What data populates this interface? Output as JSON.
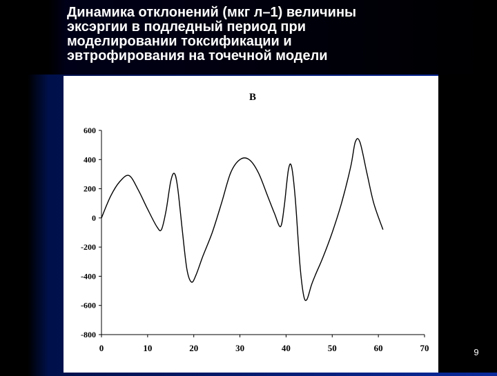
{
  "slide": {
    "title": "Динамика отклонений (мкг л–1) величины\nэксэргии в подледный период при\nмоделировании токсификации и\nэвтрофирования на точечной модели",
    "page_number": "9"
  },
  "chart_data": {
    "type": "line",
    "panel_label": "В",
    "xlim": [
      0,
      70
    ],
    "ylim": [
      -800,
      600
    ],
    "x_ticks": [
      "0",
      "10",
      "20",
      "30",
      "40",
      "50",
      "60",
      "70"
    ],
    "y_ticks": [
      "600",
      "400",
      "200",
      "0",
      "-200",
      "-400",
      "-600",
      "-800"
    ],
    "grid": false,
    "series": [
      {
        "color": "#000000",
        "x": [
          0,
          2,
          4,
          6,
          8,
          10,
          12,
          13,
          14,
          15,
          15.8,
          16.5,
          17.5,
          18.5,
          19.5,
          20.5,
          22,
          24,
          26,
          28,
          30,
          32,
          34,
          36,
          37.5,
          38.8,
          39.6,
          40.5,
          41.2,
          42,
          43,
          43.8,
          44.5,
          45.5,
          46.5,
          48,
          50,
          52,
          54,
          55,
          56,
          57.5,
          59,
          61
        ],
        "y": [
          0,
          150,
          250,
          290,
          190,
          60,
          -60,
          -80,
          50,
          250,
          305,
          210,
          -80,
          -350,
          -440,
          -390,
          -260,
          -100,
          100,
          310,
          400,
          400,
          310,
          150,
          30,
          -60,
          80,
          330,
          350,
          130,
          -320,
          -530,
          -560,
          -460,
          -380,
          -270,
          -100,
          100,
          350,
          520,
          520,
          310,
          100,
          -80
        ]
      }
    ]
  }
}
